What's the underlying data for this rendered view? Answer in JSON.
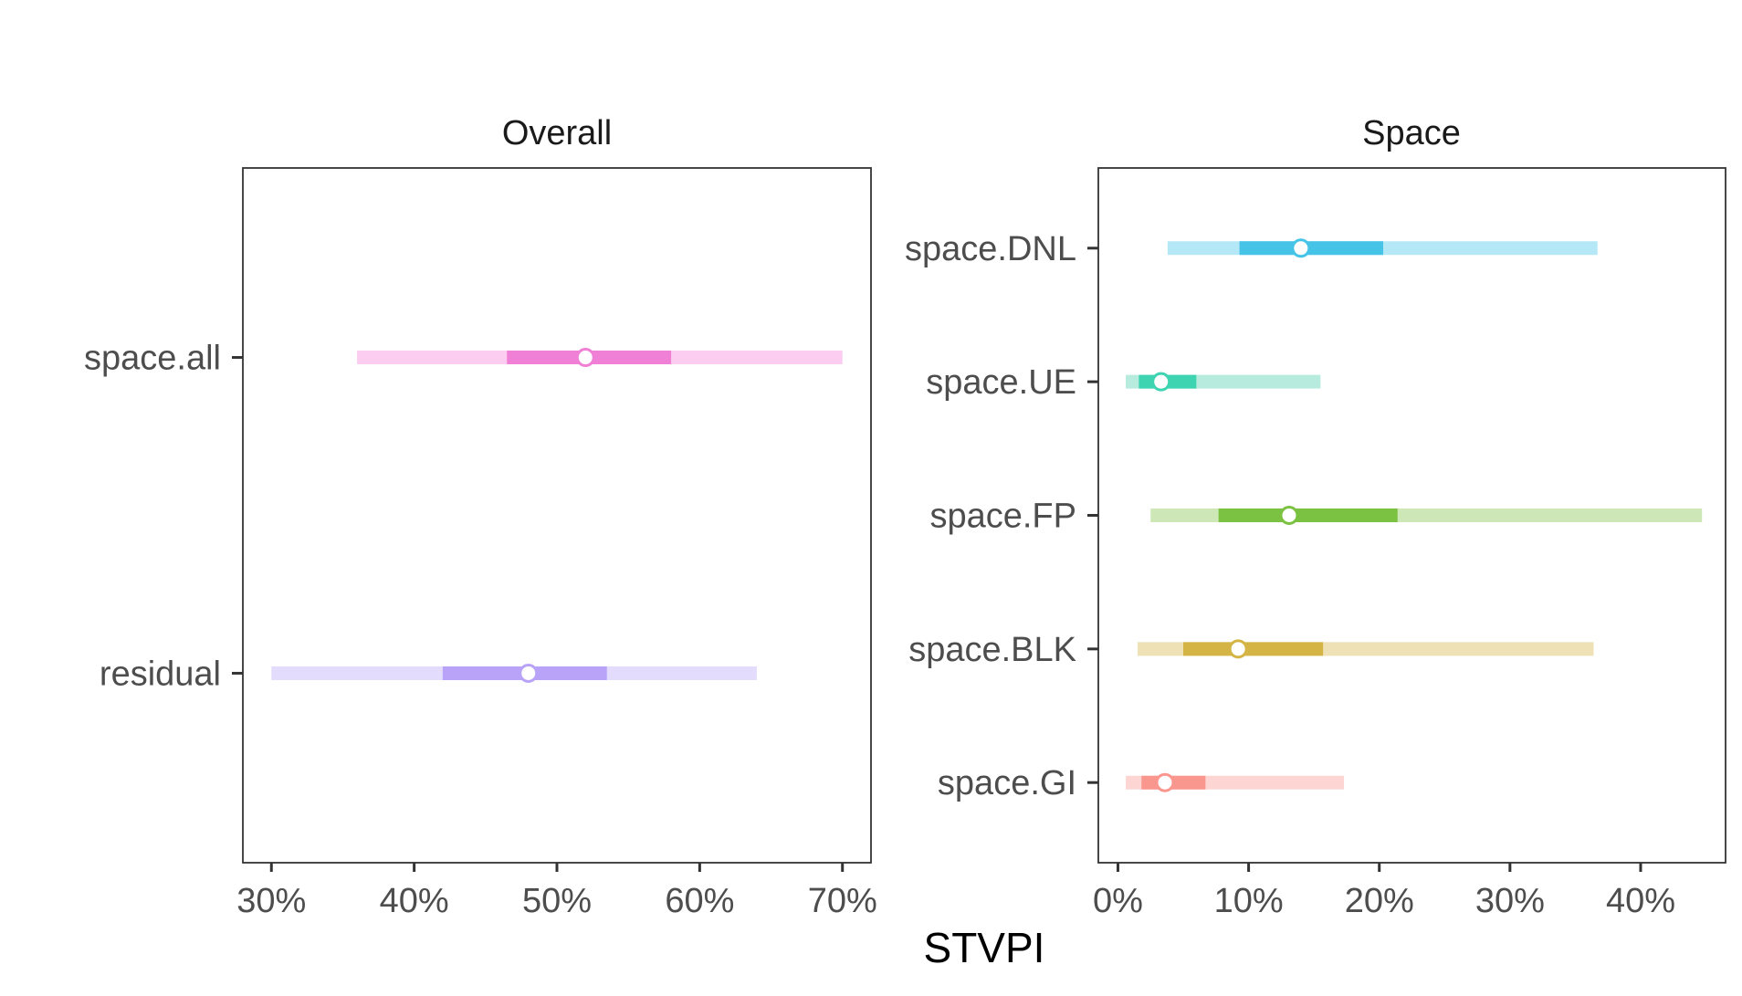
{
  "chart_data": {
    "type": "interval",
    "xlabel": "STVPI",
    "panels": [
      {
        "title": "Overall",
        "xlim": [
          0.28,
          0.72
        ],
        "xticks": [
          0.3,
          0.4,
          0.5,
          0.6,
          0.7
        ],
        "xtick_labels": [
          "30%",
          "40%",
          "50%",
          "60%",
          "70%"
        ],
        "ylim": [
          0.4,
          2.6
        ],
        "series": [
          {
            "label": "space.all",
            "point": 0.52,
            "inner": [
              0.465,
              0.58
            ],
            "outer": [
              0.36,
              0.7
            ],
            "color": "#F07FD6",
            "light": "#FCCDF1"
          },
          {
            "label": "residual",
            "point": 0.48,
            "inner": [
              0.42,
              0.535
            ],
            "outer": [
              0.3,
              0.64
            ],
            "color": "#B9A3F9",
            "light": "#E3DCFC"
          }
        ]
      },
      {
        "title": "Space",
        "xlim": [
          -0.015,
          0.465
        ],
        "xticks": [
          0.0,
          0.1,
          0.2,
          0.3,
          0.4
        ],
        "xtick_labels": [
          "0%",
          "10%",
          "20%",
          "30%",
          "40%"
        ],
        "ylim": [
          0.4,
          5.6
        ],
        "series": [
          {
            "label": "space.DNL",
            "point": 0.14,
            "inner": [
              0.093,
              0.203
            ],
            "outer": [
              0.038,
              0.367
            ],
            "color": "#45C4E8",
            "light": "#B5E8F7"
          },
          {
            "label": "space.UE",
            "point": 0.033,
            "inner": [
              0.016,
              0.06
            ],
            "outer": [
              0.006,
              0.155
            ],
            "color": "#3FD4B1",
            "light": "#B6EBDD"
          },
          {
            "label": "space.FP",
            "point": 0.131,
            "inner": [
              0.077,
              0.214
            ],
            "outer": [
              0.025,
              0.447
            ],
            "color": "#7CC242",
            "light": "#CDE8B6"
          },
          {
            "label": "space.BLK",
            "point": 0.092,
            "inner": [
              0.05,
              0.157
            ],
            "outer": [
              0.015,
              0.364
            ],
            "color": "#D4B445",
            "light": "#EEE1B5"
          },
          {
            "label": "space.GI",
            "point": 0.036,
            "inner": [
              0.018,
              0.067
            ],
            "outer": [
              0.006,
              0.173
            ],
            "color": "#F9968E",
            "light": "#FDD6D3"
          }
        ]
      }
    ]
  }
}
